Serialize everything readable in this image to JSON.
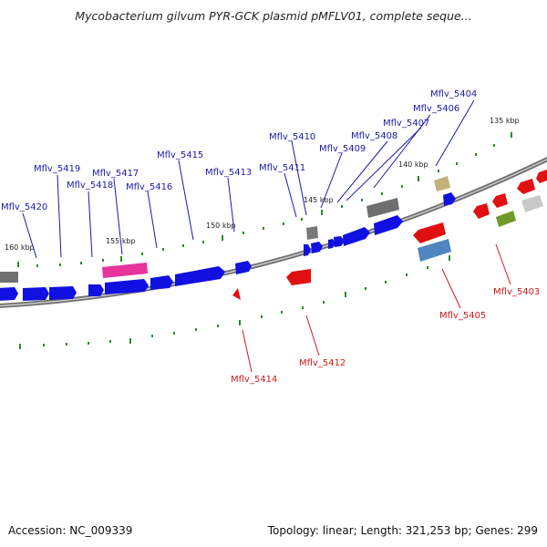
{
  "title": "Mycobacterium gilvum PYR-GCK plasmid pMFLV01, complete seque...",
  "footer": {
    "accession": "Accession: NC_009339",
    "summary": "Topology: linear; Length: 321,253 bp; Genes: 299"
  },
  "colors": {
    "plus_strand_gene": "#1010e0",
    "minus_strand_gene": "#e01010",
    "plus_label": "#1a1aa8",
    "minus_label": "#cc1a1a",
    "backbone": "#808080",
    "tick": "#2a8a2a"
  },
  "ticks": [
    "135 kbp",
    "140 kbp",
    "145 kbp",
    "150 kbp",
    "155 kbp",
    "160 kbp"
  ],
  "plus_labels": [
    "Mflv_5404",
    "Mflv_5406",
    "Mflv_5407",
    "Mflv_5408",
    "Mflv_5409",
    "Mflv_5410",
    "Mflv_5411",
    "Mflv_5413",
    "Mflv_5415",
    "Mflv_5416",
    "Mflv_5417",
    "Mflv_5418",
    "Mflv_5419",
    "Mflv_5420"
  ],
  "minus_labels": [
    "Mflv_5403",
    "Mflv_5405",
    "Mflv_5412",
    "Mflv_5414"
  ]
}
